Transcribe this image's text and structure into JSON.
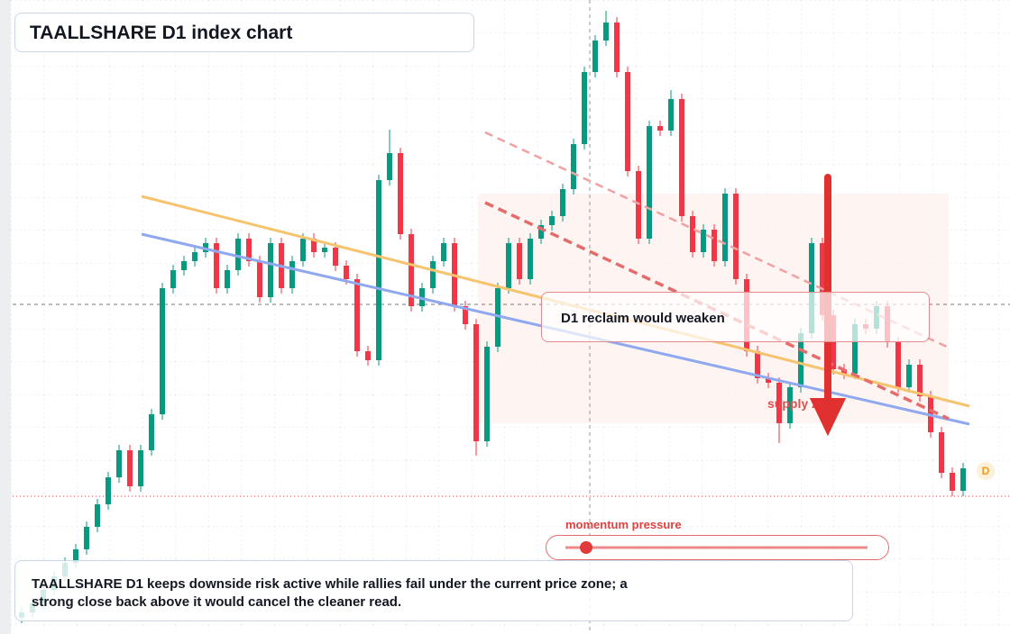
{
  "chart_data": {
    "type": "candlestick",
    "title": "TAALLSHARE D1 index chart",
    "ylim": [
      0,
      704
    ],
    "up_color": "#089981",
    "down_color": "#f23645",
    "open": [
      18,
      24,
      34,
      49,
      64,
      79,
      94,
      119,
      144,
      174,
      204,
      164,
      204,
      244,
      384,
      404,
      414,
      424,
      434,
      384,
      404,
      439,
      414,
      374,
      434,
      384,
      414,
      439,
      424,
      429,
      409,
      394,
      314,
      304,
      504,
      534,
      444,
      364,
      384,
      414,
      434,
      364,
      344,
      214,
      319,
      384,
      434,
      394,
      439,
      454,
      464,
      494,
      544,
      624,
      659,
      679,
      624,
      514,
      439,
      564,
      559,
      594,
      464,
      424,
      449,
      414,
      489,
      394,
      314,
      284,
      279,
      234,
      274,
      334,
      434,
      354,
      294,
      289,
      344,
      339,
      364,
      324,
      274,
      299,
      264,
      224,
      179,
      159
    ],
    "high": [
      30,
      40,
      55,
      70,
      85,
      100,
      125,
      150,
      180,
      210,
      210,
      210,
      250,
      390,
      410,
      420,
      430,
      440,
      440,
      410,
      445,
      445,
      420,
      440,
      440,
      420,
      445,
      445,
      435,
      435,
      415,
      400,
      320,
      510,
      560,
      540,
      450,
      390,
      420,
      440,
      440,
      370,
      350,
      325,
      390,
      440,
      440,
      445,
      460,
      470,
      500,
      550,
      630,
      665,
      692,
      685,
      630,
      520,
      570,
      570,
      604,
      600,
      470,
      455,
      455,
      495,
      495,
      400,
      320,
      290,
      285,
      280,
      340,
      440,
      440,
      360,
      300,
      350,
      350,
      370,
      370,
      330,
      305,
      305,
      270,
      230,
      185,
      190
    ],
    "low": [
      12,
      18,
      28,
      43,
      58,
      73,
      88,
      113,
      138,
      168,
      158,
      158,
      198,
      238,
      378,
      398,
      408,
      418,
      378,
      378,
      398,
      408,
      368,
      368,
      378,
      378,
      408,
      418,
      418,
      403,
      388,
      308,
      298,
      298,
      498,
      438,
      358,
      358,
      378,
      408,
      358,
      338,
      198,
      208,
      313,
      378,
      388,
      388,
      433,
      448,
      458,
      488,
      538,
      618,
      653,
      618,
      508,
      433,
      433,
      553,
      553,
      458,
      418,
      418,
      408,
      408,
      388,
      308,
      278,
      273,
      212,
      228,
      268,
      328,
      348,
      288,
      283,
      283,
      333,
      333,
      318,
      268,
      268,
      258,
      218,
      173,
      153,
      153
    ],
    "close": [
      24,
      34,
      49,
      64,
      79,
      94,
      119,
      144,
      174,
      204,
      164,
      204,
      244,
      384,
      404,
      414,
      424,
      434,
      384,
      404,
      439,
      414,
      374,
      434,
      384,
      414,
      439,
      424,
      429,
      409,
      394,
      314,
      304,
      504,
      534,
      444,
      364,
      384,
      414,
      434,
      364,
      344,
      214,
      319,
      384,
      434,
      394,
      439,
      454,
      464,
      494,
      544,
      624,
      659,
      679,
      624,
      514,
      439,
      564,
      559,
      594,
      464,
      424,
      449,
      414,
      489,
      394,
      314,
      284,
      279,
      234,
      274,
      334,
      434,
      354,
      294,
      289,
      344,
      339,
      364,
      324,
      274,
      299,
      264,
      224,
      179,
      159,
      184
    ],
    "annotations": {
      "callout": "D1 reclaim would weaken",
      "zone": "supply zone",
      "badge": "D",
      "gauge": "momentum pressure",
      "note": "TAALLSHARE D1 keeps downside risk active while rallies fail under the current price zone; a strong close back above it would cancel the cleaner read."
    }
  }
}
